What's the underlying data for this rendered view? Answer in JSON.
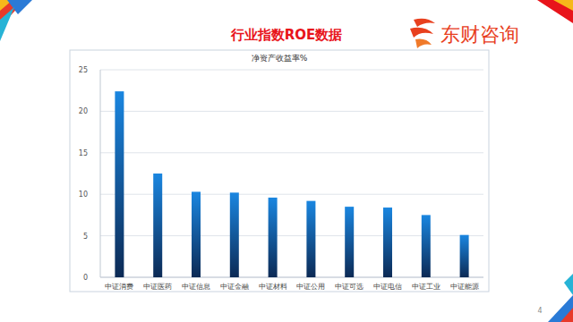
{
  "slide": {
    "title": "行业指数ROE数据",
    "logo": "东财咨询",
    "page_number": "4"
  },
  "chart_data": {
    "type": "bar",
    "title": "净资产收益率%",
    "categories": [
      "中证消费",
      "中证医药",
      "中证信息",
      "中证金融",
      "中证材料",
      "中证公用",
      "中证可选",
      "中证电信",
      "中证工业",
      "中证能源"
    ],
    "values": [
      22.4,
      12.5,
      10.3,
      10.2,
      9.6,
      9.2,
      8.5,
      8.4,
      7.5,
      5.1
    ],
    "color": "#1a86e0",
    "ylim": [
      0,
      25
    ],
    "yticks": [
      0,
      5,
      10,
      15,
      20,
      25
    ],
    "grid": true
  }
}
